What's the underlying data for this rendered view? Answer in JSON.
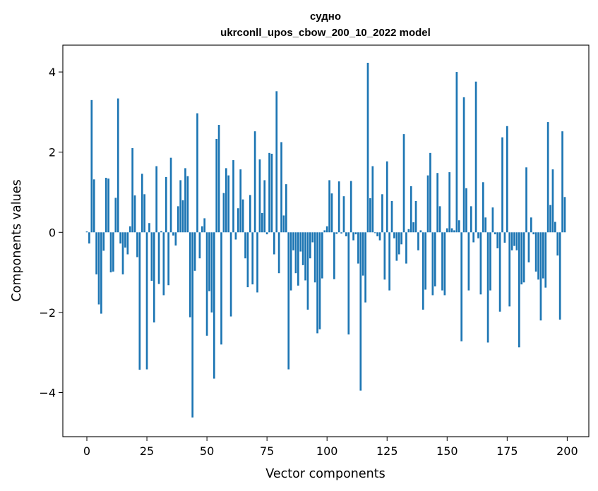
{
  "chart_data": {
    "type": "bar",
    "title": "судно\nukrconll_upos_cbow_200_10_2022 model",
    "title_lines": [
      "судно",
      "ukrconll_upos_cbow_200_10_2022 model"
    ],
    "xlabel": "Vector components",
    "ylabel": "Components values",
    "xlim": [
      -10,
      209
    ],
    "ylim": [
      -5.1,
      4.67
    ],
    "xticks": [
      0,
      25,
      50,
      75,
      100,
      125,
      150,
      175,
      200
    ],
    "xtick_labels": [
      "0",
      "25",
      "50",
      "75",
      "100",
      "125",
      "150",
      "175",
      "200"
    ],
    "yticks": [
      -4,
      -2,
      0,
      2,
      4
    ],
    "ytick_labels": [
      "−4",
      "−2",
      "0",
      "2",
      "4"
    ],
    "bar_color": "#1f77b4",
    "grid": false,
    "values": [
      0.02,
      -0.28,
      3.3,
      1.32,
      -1.05,
      -1.8,
      -2.03,
      -0.46,
      1.36,
      1.34,
      -1.0,
      -0.98,
      0.86,
      3.34,
      -0.28,
      -1.05,
      -0.38,
      -0.55,
      0.15,
      2.1,
      0.92,
      -0.62,
      -3.43,
      1.46,
      0.95,
      -3.42,
      0.23,
      -1.21,
      -2.25,
      1.65,
      -1.29,
      0.03,
      -1.57,
      1.38,
      -1.32,
      1.86,
      -0.08,
      -0.33,
      0.65,
      1.3,
      0.8,
      1.6,
      1.4,
      -2.12,
      -4.62,
      -0.96,
      2.97,
      -0.65,
      0.15,
      0.35,
      -2.58,
      -1.47,
      -2.0,
      -3.65,
      2.33,
      2.68,
      -2.8,
      0.98,
      1.6,
      1.42,
      -2.1,
      1.8,
      -0.18,
      0.6,
      1.57,
      0.82,
      -0.65,
      -1.37,
      0.93,
      -1.3,
      2.52,
      -1.5,
      1.82,
      0.48,
      1.3,
      -0.05,
      1.98,
      1.96,
      -0.55,
      3.52,
      -1.02,
      2.25,
      0.42,
      1.2,
      -3.42,
      -1.45,
      -0.45,
      -1.02,
      -1.33,
      -0.48,
      -0.82,
      -1.2,
      -1.93,
      -0.65,
      -0.25,
      -1.25,
      -2.52,
      -2.42,
      -1.15,
      0.05,
      0.15,
      1.3,
      0.97,
      -1.17,
      -0.04,
      1.27,
      -0.03,
      0.9,
      -0.1,
      -2.55,
      1.28,
      -0.2,
      -0.05,
      -0.78,
      -3.95,
      -1.08,
      -1.75,
      4.23,
      0.85,
      1.65,
      -0.02,
      -0.1,
      -0.2,
      0.95,
      -1.18,
      1.77,
      -1.45,
      0.78,
      -0.15,
      -0.71,
      -0.55,
      -0.3,
      2.45,
      -0.78,
      0.08,
      1.15,
      0.25,
      0.78,
      -0.45,
      0.05,
      -1.93,
      -1.43,
      1.42,
      1.98,
      -1.57,
      -1.35,
      1.48,
      0.65,
      -1.45,
      -1.57,
      0.1,
      1.5,
      0.1,
      0.05,
      4.0,
      0.3,
      -2.72,
      3.37,
      1.1,
      -1.45,
      0.65,
      -0.25,
      3.76,
      -0.15,
      -1.55,
      1.25,
      0.37,
      -2.75,
      -1.45,
      0.62,
      -0.05,
      -0.4,
      -1.98,
      2.37,
      -0.26,
      2.65,
      -1.85,
      -0.45,
      -0.34,
      -0.45,
      -2.87,
      -1.3,
      -1.25,
      1.62,
      -0.75,
      0.37,
      -0.05,
      -0.98,
      -1.18,
      -2.2,
      -1.15,
      -1.38,
      2.75,
      0.68,
      1.57,
      0.26,
      -0.58,
      -2.18,
      2.52,
      0.88
    ]
  }
}
